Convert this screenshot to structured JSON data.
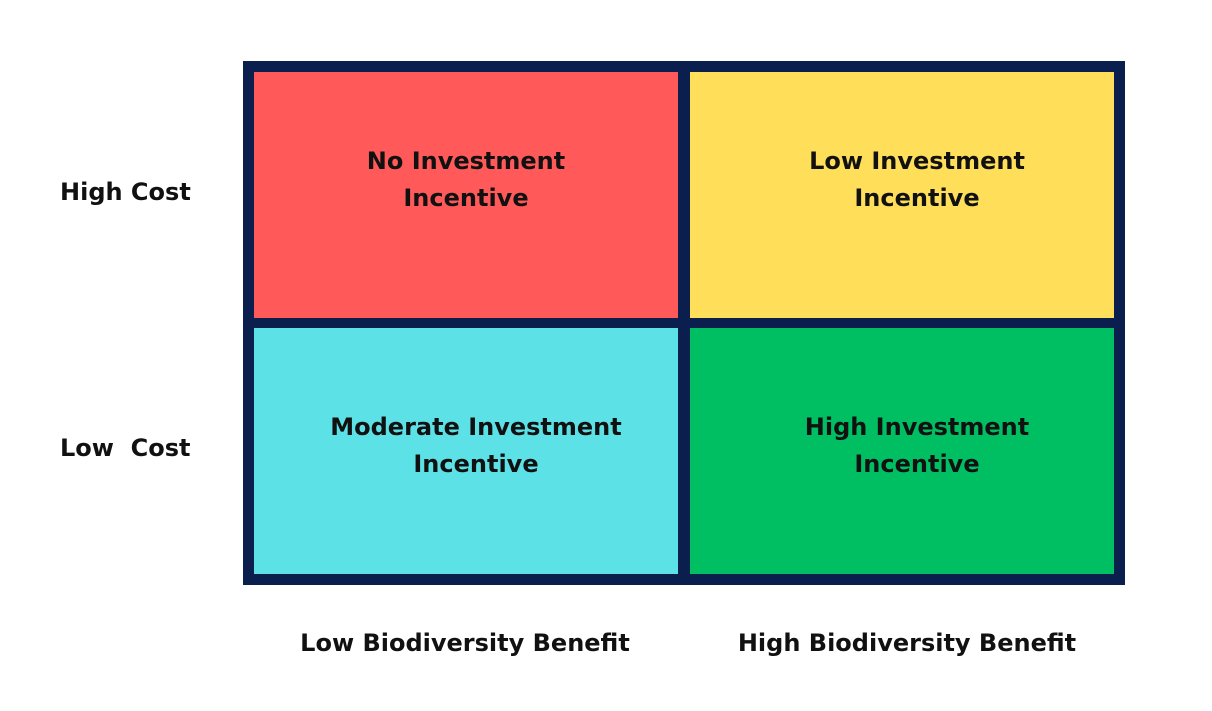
{
  "rows": {
    "top_label": "High Cost",
    "bottom_label": "Low  Cost"
  },
  "columns": {
    "left_label": "Low Biodiversity Benefit",
    "right_label": "High Biodiversity Benefit"
  },
  "cells": {
    "top_left": {
      "text": "No Investment Incentive",
      "color": "#FF5A59"
    },
    "top_right": {
      "text": "Low Investment Incentive",
      "color": "#FFDE59"
    },
    "bottom_left": {
      "text": "Moderate Investment Incentive",
      "color": "#5CE1E6"
    },
    "bottom_right": {
      "text": "High Investment Incentive",
      "color": "#00BF63"
    }
  },
  "colors": {
    "frame": "#0A1F4E"
  }
}
